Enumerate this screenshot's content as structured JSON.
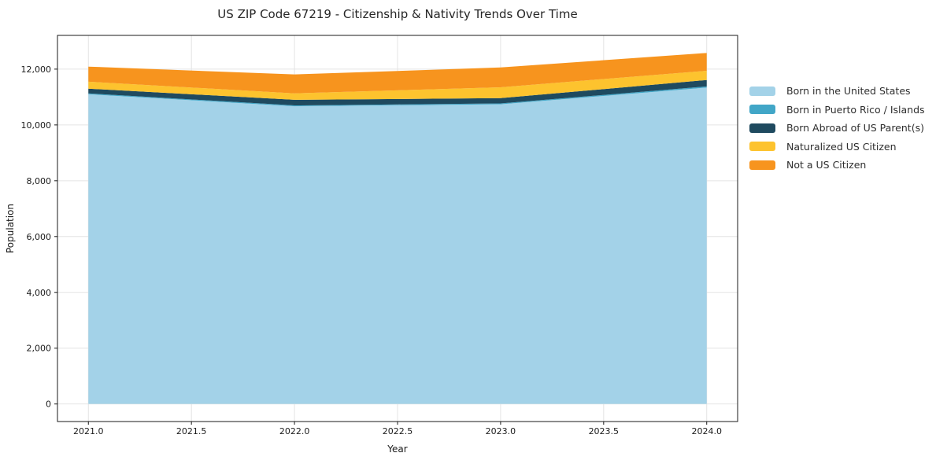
{
  "chart_data": {
    "type": "area",
    "stacked": true,
    "title": "US ZIP Code 67219 - Citizenship & Nativity Trends Over Time",
    "xlabel": "Year",
    "ylabel": "Population",
    "x": [
      2021,
      2022,
      2023,
      2024
    ],
    "series": [
      {
        "name": "Born in the United States",
        "color": "#A3D2E8",
        "values": [
          11100,
          10670,
          10740,
          11340
        ]
      },
      {
        "name": "Born in Puerto Rico / Islands",
        "color": "#41A6C7",
        "values": [
          30,
          30,
          30,
          40
        ]
      },
      {
        "name": "Born Abroad of US Parent(s)",
        "color": "#1F4A5F",
        "values": [
          170,
          200,
          190,
          230
        ]
      },
      {
        "name": "Naturalized US Citizen",
        "color": "#FDC32E",
        "values": [
          250,
          230,
          390,
          330
        ]
      },
      {
        "name": "Not a US Citizen",
        "color": "#F7941E",
        "values": [
          540,
          680,
          710,
          640
        ]
      }
    ],
    "totals": [
      12090,
      11810,
      12060,
      12580
    ],
    "x_ticks": [
      "2021.0",
      "2021.5",
      "2022.0",
      "2022.5",
      "2023.0",
      "2023.5",
      "2024.0"
    ],
    "x_tick_values": [
      2021,
      2021.5,
      2022,
      2022.5,
      2023,
      2023.5,
      2024
    ],
    "y_ticks": [
      "0",
      "2,000",
      "4,000",
      "6,000",
      "8,000",
      "10,000",
      "12,000"
    ],
    "y_tick_values": [
      0,
      2000,
      4000,
      6000,
      8000,
      10000,
      12000
    ],
    "xlim": [
      2020.85,
      2024.15
    ],
    "ylim": [
      -629,
      13209
    ],
    "grid": true,
    "grid_color": "#e4e4e4",
    "spine_color": "#1a1a1a",
    "tick_label_color": "#1a1a1a",
    "legend_position": "right"
  }
}
